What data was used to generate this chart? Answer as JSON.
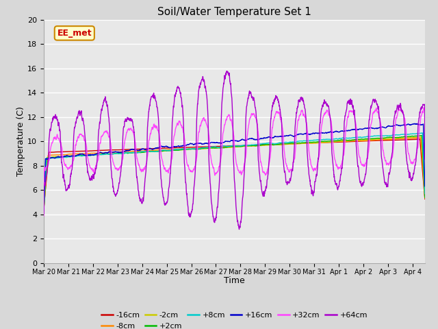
{
  "title": "Soil/Water Temperature Set 1",
  "xlabel": "Time",
  "ylabel": "Temperature (C)",
  "ylim": [
    0,
    20
  ],
  "yticks": [
    0,
    2,
    4,
    6,
    8,
    10,
    12,
    14,
    16,
    18,
    20
  ],
  "num_days": 15.5,
  "series_labels": [
    "-16cm",
    "-8cm",
    "-2cm",
    "+2cm",
    "+8cm",
    "+16cm",
    "+32cm",
    "+64cm"
  ],
  "series_colors": [
    "#cc0000",
    "#ff8800",
    "#cccc00",
    "#00bb00",
    "#00cccc",
    "#0000cc",
    "#ff44ff",
    "#aa00cc"
  ],
  "annotation_text": "EE_met",
  "annotation_bgcolor": "#ffffcc",
  "annotation_edgecolor": "#cc8800",
  "annotation_textcolor": "#cc0000",
  "fig_facecolor": "#d8d8d8",
  "plot_facecolor": "#e8e8e8",
  "grid_color": "#ffffff",
  "n_points": 2232
}
